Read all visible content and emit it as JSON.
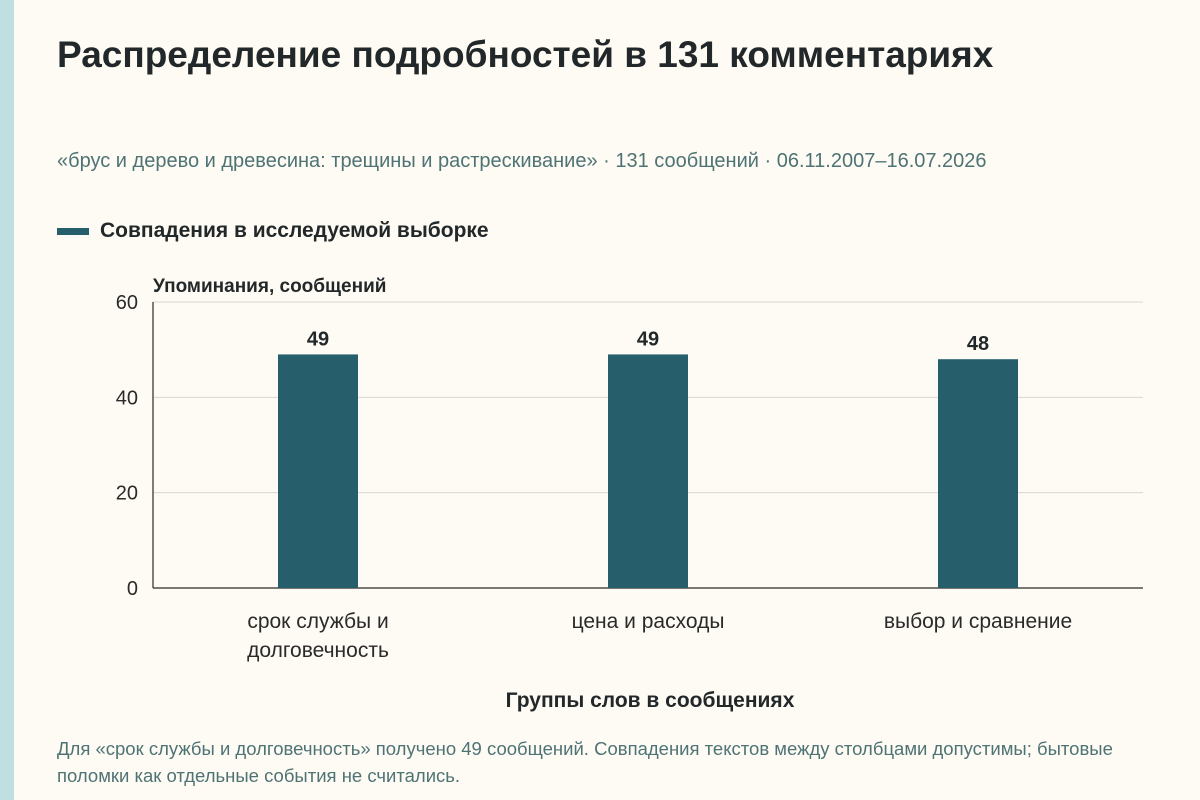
{
  "title": "Распределение подробностей в 131 комментариях",
  "subtitle": "«брус и дерево и древесина: трещины и растрескивание» · 131 сообщений · 06.11.2007–16.07.2026",
  "footnote": "Для «срок службы и долговечность» получено 49 сообщений. Совпадения текстов между столбцами допустимы; бытовые поломки как отдельные события не считались.",
  "colors": {
    "bar": "#265f6b",
    "background": "#fdfbf3",
    "grid": "#d7d7d2",
    "axis": "#2a2a2a",
    "accent_strip": "#bfdfe0"
  },
  "chart_data": {
    "type": "bar",
    "title": "Распределение подробностей в 131 комментариях",
    "xlabel": "Группы слов в сообщениях",
    "ylabel": "Упоминания, сообщений",
    "categories": [
      [
        "срок службы и",
        "долговечность"
      ],
      [
        "цена и расходы"
      ],
      [
        "выбор и сравнение"
      ]
    ],
    "series": [
      {
        "name": "Совпадения в исследуемой выборке",
        "values": [
          49,
          49,
          48
        ]
      }
    ],
    "ylim": [
      0,
      60
    ],
    "yticks": [
      0,
      20,
      40,
      60
    ],
    "data_labels": true,
    "grid": true,
    "legend": "top-left"
  }
}
